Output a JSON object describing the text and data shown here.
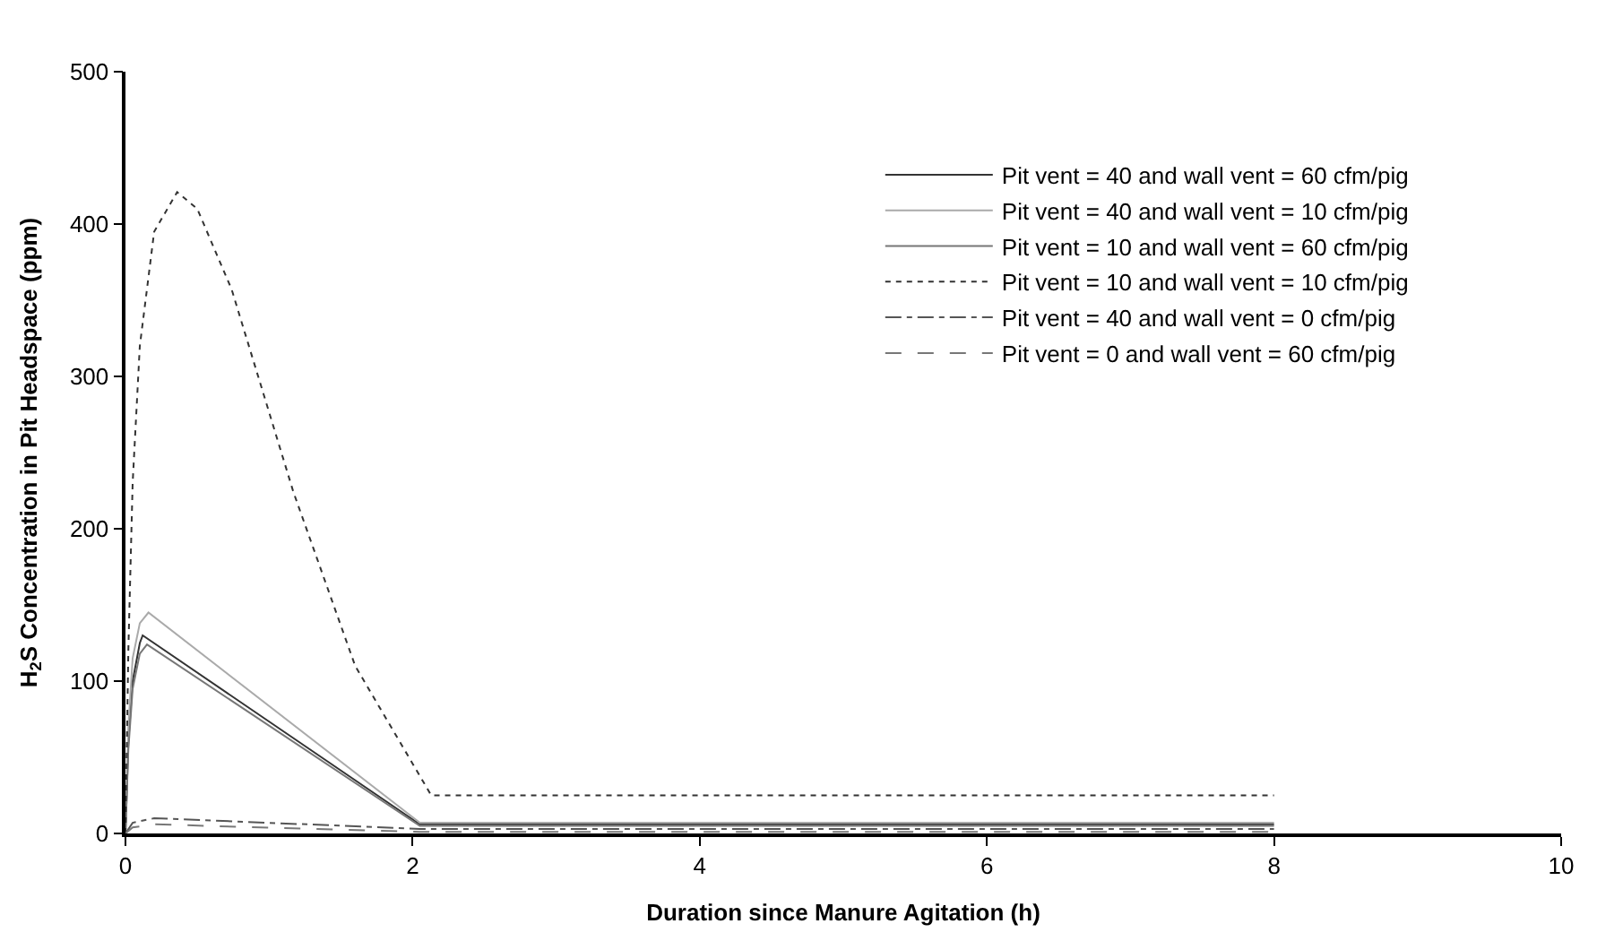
{
  "chart_data": {
    "type": "line",
    "xlabel": "Duration since Manure Agitation (h)",
    "ylabel": "H$_{2}$S Concentration in Pit Headspace (ppm)",
    "xlim": [
      0,
      10
    ],
    "xticks": [
      0,
      2,
      4,
      6,
      8,
      10
    ],
    "ylim": [
      0,
      500
    ],
    "yticks": [
      0,
      100,
      200,
      300,
      400,
      500
    ],
    "legend": "top right",
    "marker": "none",
    "series": [
      {
        "name": "Pit vent = 40 and wall vent = 60 cfm/pig",
        "color": "#333333",
        "line_style": "solid",
        "x": [
          0,
          0.02,
          0.05,
          0.1,
          0.12,
          2.05,
          8
        ],
        "values": [
          0,
          60,
          100,
          125,
          130,
          6,
          6
        ]
      },
      {
        "name": "Pit vent = 40 and wall vent = 10 cfm/pig",
        "color": "#aaaaaa",
        "line_style": "solid",
        "x": [
          0,
          0.02,
          0.05,
          0.1,
          0.16,
          2.05,
          8
        ],
        "values": [
          0,
          70,
          115,
          138,
          145,
          7,
          7
        ]
      },
      {
        "name": "Pit vent = 10 and wall vent = 60 cfm/pig",
        "color": "#777777",
        "line_style": "solid",
        "x": [
          0,
          0.02,
          0.05,
          0.1,
          0.15,
          2.05,
          8
        ],
        "values": [
          0,
          55,
          95,
          118,
          124,
          5,
          5
        ]
      },
      {
        "name": "Pit vent = 10 and wall vent = 10 cfm/pig",
        "color": "#333333",
        "line_style": "dotted",
        "x": [
          0,
          0.02,
          0.05,
          0.1,
          0.2,
          0.36,
          0.5,
          0.74,
          1.17,
          1.6,
          2.13,
          8
        ],
        "values": [
          0,
          120,
          230,
          320,
          395,
          421,
          410,
          357,
          224,
          110,
          25,
          25
        ]
      },
      {
        "name": "Pit vent = 40 and wall vent = 0 cfm/pig",
        "color": "#555555",
        "line_style": "dashdot",
        "x": [
          0,
          0.05,
          0.2,
          2.05,
          8
        ],
        "values": [
          0,
          7,
          10,
          3,
          3
        ]
      },
      {
        "name": "Pit vent = 0 and wall vent = 60 cfm/pig",
        "color": "#777777",
        "line_style": "dashed",
        "x": [
          0,
          0.05,
          0.2,
          2.05,
          8
        ],
        "values": [
          0,
          4,
          6,
          1,
          1
        ]
      }
    ]
  }
}
